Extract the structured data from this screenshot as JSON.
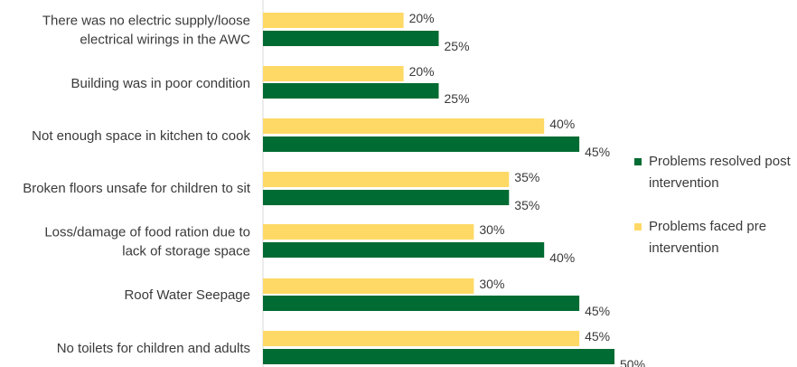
{
  "chart_data": {
    "type": "bar",
    "orientation": "horizontal",
    "categories": [
      [
        "There was no electric supply/loose",
        "electrical wirings in the AWC"
      ],
      [
        "Building was in poor condition"
      ],
      [
        "Not enough space in kitchen to cook"
      ],
      [
        "Broken floors unsafe for children to sit"
      ],
      [
        "Loss/damage of food ration due to",
        "lack of storage space"
      ],
      [
        "Roof Water Seepage"
      ],
      [
        "No toilets for children and adults"
      ]
    ],
    "series": [
      {
        "name": "Problems faced pre intervention",
        "legend_lines": [
          "Problems faced pre",
          "intervention"
        ],
        "color": "#FFD966",
        "values": [
          20,
          20,
          40,
          35,
          30,
          30,
          45
        ],
        "labels": [
          "20%",
          "20%",
          "40%",
          "35%",
          "30%",
          "30%",
          "45%"
        ]
      },
      {
        "name": "Problems resolved post intervention",
        "legend_lines": [
          "Problems resolved post",
          "intervention"
        ],
        "color": "#006B32",
        "values": [
          25,
          25,
          45,
          35,
          40,
          45,
          50
        ],
        "labels": [
          "25%",
          "25%",
          "45%",
          "35%",
          "40%",
          "45%",
          "50%"
        ]
      }
    ],
    "legend_order": [
      1,
      0
    ],
    "legend_position": "right",
    "xlabel": "",
    "ylabel": "",
    "xlim": [
      0,
      50
    ],
    "grid": false,
    "axis_color": "#d9d9d9"
  }
}
